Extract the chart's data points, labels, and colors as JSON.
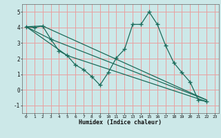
{
  "xlabel": "Humidex (Indice chaleur)",
  "bg_color": "#cce8e8",
  "grid_color": "#e8a0a0",
  "line_color": "#1a6b5a",
  "xlim": [
    -0.5,
    23.5
  ],
  "ylim": [
    -1.5,
    5.5
  ],
  "yticks": [
    -1,
    0,
    1,
    2,
    3,
    4,
    5
  ],
  "xticks": [
    0,
    1,
    2,
    3,
    4,
    5,
    6,
    7,
    8,
    9,
    10,
    11,
    12,
    13,
    14,
    15,
    16,
    17,
    18,
    19,
    20,
    21,
    22,
    23
  ],
  "series": [
    {
      "x": [
        0,
        1,
        2,
        3,
        4,
        5,
        6,
        7,
        8,
        9,
        10,
        11,
        12,
        13,
        14,
        15,
        16,
        17,
        18,
        19,
        20,
        21,
        22
      ],
      "y": [
        4.05,
        4.0,
        4.1,
        3.25,
        2.5,
        2.2,
        1.6,
        1.3,
        0.85,
        0.3,
        1.1,
        2.05,
        2.6,
        4.2,
        4.2,
        5.0,
        4.2,
        2.85,
        1.75,
        1.1,
        0.5,
        -0.65,
        -0.75
      ],
      "marker": true
    },
    {
      "x": [
        0,
        2,
        22
      ],
      "y": [
        4.05,
        4.1,
        -0.65
      ],
      "marker": false
    },
    {
      "x": [
        0,
        3,
        22
      ],
      "y": [
        4.05,
        3.25,
        -0.65
      ],
      "marker": false
    },
    {
      "x": [
        0,
        5,
        22
      ],
      "y": [
        4.05,
        2.2,
        -0.75
      ],
      "marker": false
    }
  ]
}
